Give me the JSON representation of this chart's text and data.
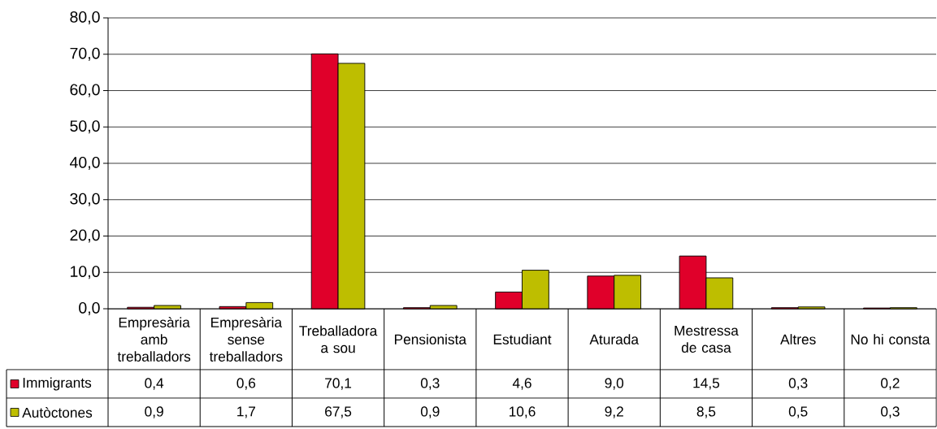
{
  "chart_data": {
    "type": "bar",
    "categories": [
      "Empresària amb treballadors",
      "Empresària sense treballadors",
      "Treballadora a sou",
      "Pensionista",
      "Estudiant",
      "Aturada",
      "Mestressa de casa",
      "Altres",
      "No hi consta"
    ],
    "series": [
      {
        "name": "Immigrants",
        "color": "#e0002a",
        "values": [
          0.4,
          0.6,
          70.1,
          0.3,
          4.6,
          9.0,
          14.5,
          0.3,
          0.2
        ],
        "value_labels": [
          "0,4",
          "0,6",
          "70,1",
          "0,3",
          "4,6",
          "9,0",
          "14,5",
          "0,3",
          "0,2"
        ]
      },
      {
        "name": "Autòctones",
        "color": "#bebe00",
        "values": [
          0.9,
          1.7,
          67.5,
          0.9,
          10.6,
          9.2,
          8.5,
          0.5,
          0.3
        ],
        "value_labels": [
          "0,9",
          "1,7",
          "67,5",
          "0,9",
          "10,6",
          "9,2",
          "8,5",
          "0,5",
          "0,3"
        ]
      }
    ],
    "ylim": [
      0,
      80
    ],
    "yticks": [
      {
        "value": 0,
        "label": "0,0"
      },
      {
        "value": 10,
        "label": "10,0"
      },
      {
        "value": 20,
        "label": "20,0"
      },
      {
        "value": 30,
        "label": "30,0"
      },
      {
        "value": 40,
        "label": "40,0"
      },
      {
        "value": 50,
        "label": "50,0"
      },
      {
        "value": 60,
        "label": "60,0"
      },
      {
        "value": 70,
        "label": "70,0"
      },
      {
        "value": 80,
        "label": "80,0"
      }
    ],
    "grid": "y",
    "legend": "bottom left"
  }
}
